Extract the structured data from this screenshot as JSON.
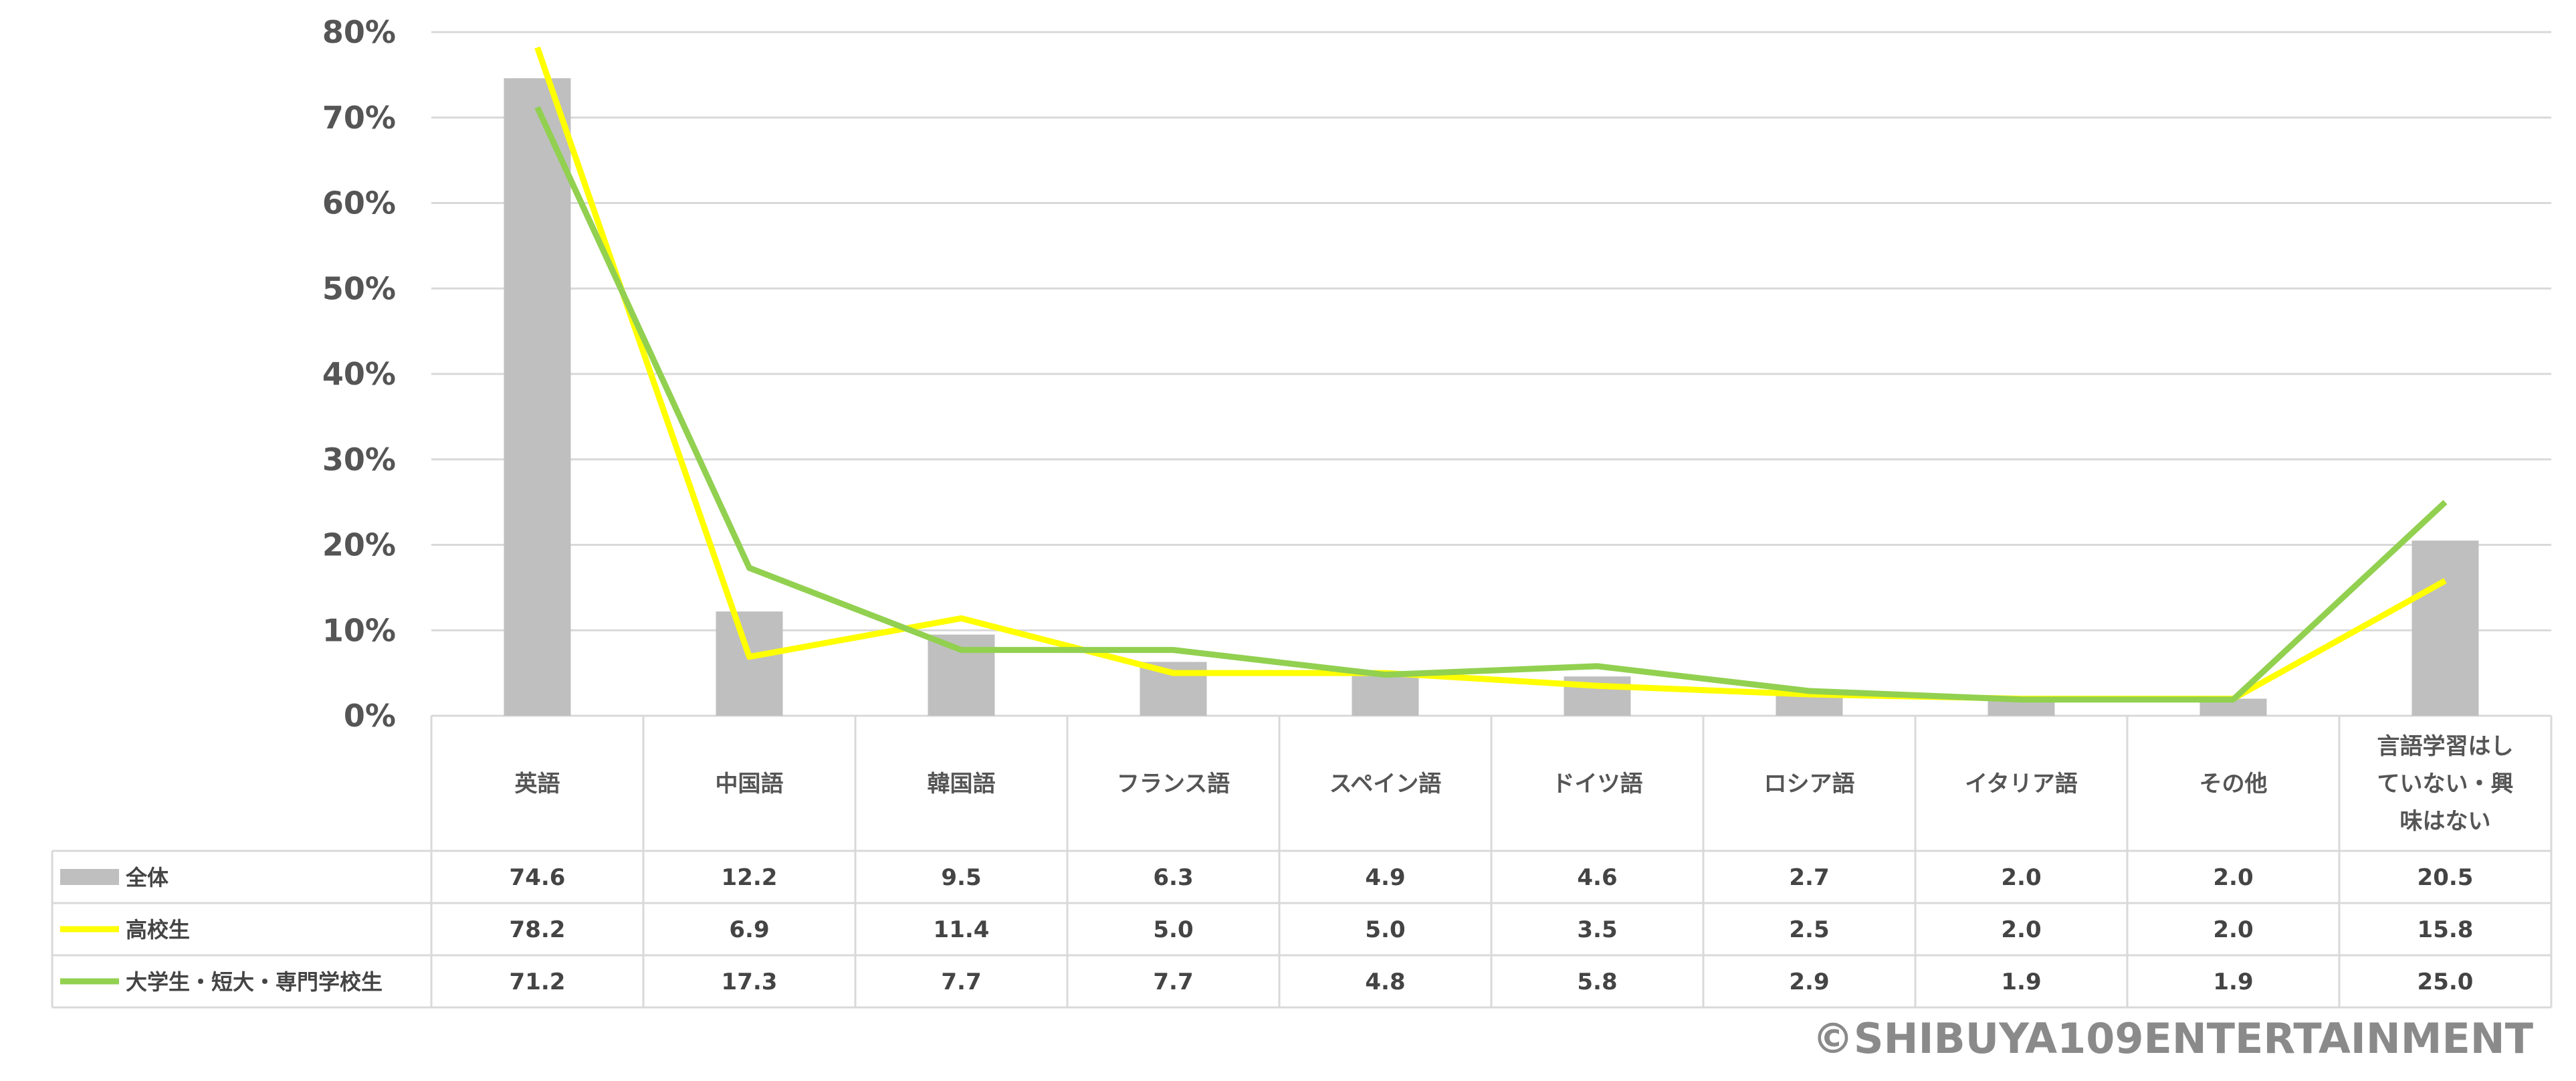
{
  "chart_data": {
    "type": "bar",
    "categories": [
      "英語",
      "中国語",
      "韓国語",
      "フランス語",
      "スペイン語",
      "ドイツ語",
      "ロシア語",
      "イタリア語",
      "その他",
      "言語学習はしていない・興味はない"
    ],
    "category_lines": [
      [
        "英語"
      ],
      [
        "中国語"
      ],
      [
        "韓国語"
      ],
      [
        "フランス語"
      ],
      [
        "スペイン語"
      ],
      [
        "ドイツ語"
      ],
      [
        "ロシア語"
      ],
      [
        "イタリア語"
      ],
      [
        "その他"
      ],
      [
        "言語学習はし",
        "ていない・興",
        "味はない"
      ]
    ],
    "series": [
      {
        "name": "全体",
        "kind": "bar",
        "color": "#bfbfbf",
        "values": [
          74.6,
          12.2,
          9.5,
          6.3,
          4.9,
          4.6,
          2.7,
          2.0,
          2.0,
          20.5
        ],
        "labels": [
          "74.6",
          "12.2",
          "9.5",
          "6.3",
          "4.9",
          "4.6",
          "2.7",
          "2.0",
          "2.0",
          "20.5"
        ]
      },
      {
        "name": "高校生",
        "kind": "line",
        "color": "#ffff00",
        "values": [
          78.2,
          6.9,
          11.4,
          5.0,
          5.0,
          3.5,
          2.5,
          2.0,
          2.0,
          15.8
        ],
        "labels": [
          "78.2",
          "6.9",
          "11.4",
          "5.0",
          "5.0",
          "3.5",
          "2.5",
          "2.0",
          "2.0",
          "15.8"
        ]
      },
      {
        "name": "大学生・短大・専門学校生",
        "kind": "line",
        "color": "#92d050",
        "values": [
          71.2,
          17.3,
          7.7,
          7.7,
          4.8,
          5.8,
          2.9,
          1.9,
          1.9,
          25.0
        ],
        "labels": [
          "71.2",
          "17.3",
          "7.7",
          "7.7",
          "4.8",
          "5.8",
          "2.9",
          "1.9",
          "1.9",
          "25.0"
        ]
      }
    ],
    "yticks": [
      "0%",
      "10%",
      "20%",
      "30%",
      "40%",
      "50%",
      "60%",
      "70%",
      "80%"
    ],
    "ylim": [
      0,
      80
    ],
    "grid": true,
    "legend": "data-table"
  },
  "copyright": "©SHIBUYA109ENTERTAINMENT"
}
